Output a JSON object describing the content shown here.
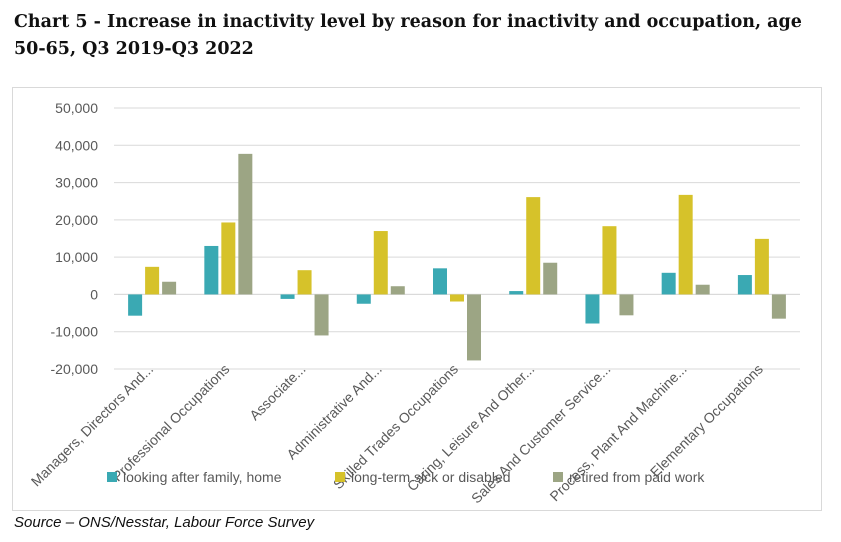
{
  "title": "Chart 5 - Increase in inactivity level by reason for inactivity and occupation, age 50-65, Q3 2019-Q3 2022",
  "source": "Source – ONS/Nesstar, Labour Force Survey",
  "chart_data": {
    "type": "bar",
    "title": "",
    "xlabel": "",
    "ylabel": "",
    "ylim": [
      -20000,
      50000
    ],
    "yticks": [
      -20000,
      -10000,
      0,
      10000,
      20000,
      30000,
      40000,
      50000
    ],
    "ytick_labels": [
      "-20,000",
      "-10,000",
      "0",
      "10,000",
      "20,000",
      "30,000",
      "40,000",
      "50,000"
    ],
    "grid": true,
    "legend_position": "bottom",
    "categories": [
      "Managers, Directors And...",
      "Professional Occupations",
      "Associate...",
      "Administrative And...",
      "Skilled Trades Occupations",
      "Caring, Leisure And Other...",
      "Sales And Customer Service...",
      "Process, Plant And Machine...",
      "Elementary Occupations"
    ],
    "series": [
      {
        "name": "looking after family, home",
        "color": "#3aa9b3",
        "values": [
          -5700,
          13000,
          -1200,
          -2500,
          7000,
          900,
          -7800,
          5800,
          5200
        ]
      },
      {
        "name": "long-term sick or disabled",
        "color": "#d6c22a",
        "values": [
          7400,
          19300,
          6500,
          17000,
          -1900,
          26100,
          18300,
          26700,
          14900
        ]
      },
      {
        "name": "retired from paid work",
        "color": "#9ca584",
        "values": [
          3400,
          37700,
          -11000,
          2200,
          -17700,
          8500,
          -5600,
          2600,
          -6500
        ]
      }
    ]
  }
}
